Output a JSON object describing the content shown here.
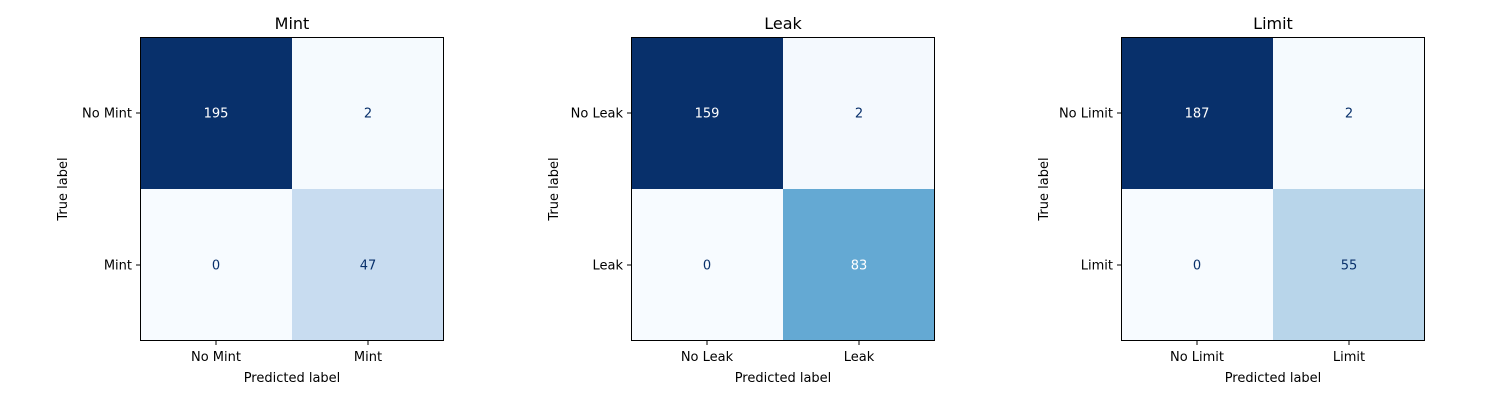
{
  "chart_data": [
    {
      "type": "heatmap",
      "title": "Mint",
      "xlabel": "Predicted label",
      "ylabel": "True label",
      "x_tick_labels": [
        "No Mint",
        "Mint"
      ],
      "y_tick_labels": [
        "No Mint",
        "Mint"
      ],
      "matrix": [
        [
          195,
          2
        ],
        [
          0,
          47
        ]
      ],
      "colormap": "Blues"
    },
    {
      "type": "heatmap",
      "title": "Leak",
      "xlabel": "Predicted label",
      "ylabel": "True label",
      "x_tick_labels": [
        "No Leak",
        "Leak"
      ],
      "y_tick_labels": [
        "No Leak",
        "Leak"
      ],
      "matrix": [
        [
          159,
          2
        ],
        [
          0,
          83
        ]
      ],
      "colormap": "Blues"
    },
    {
      "type": "heatmap",
      "title": "Limit",
      "xlabel": "Predicted label",
      "ylabel": "True label",
      "x_tick_labels": [
        "No Limit",
        "Limit"
      ],
      "y_tick_labels": [
        "No Limit",
        "Limit"
      ],
      "matrix": [
        [
          187,
          2
        ],
        [
          0,
          55
        ]
      ],
      "colormap": "Blues"
    }
  ]
}
